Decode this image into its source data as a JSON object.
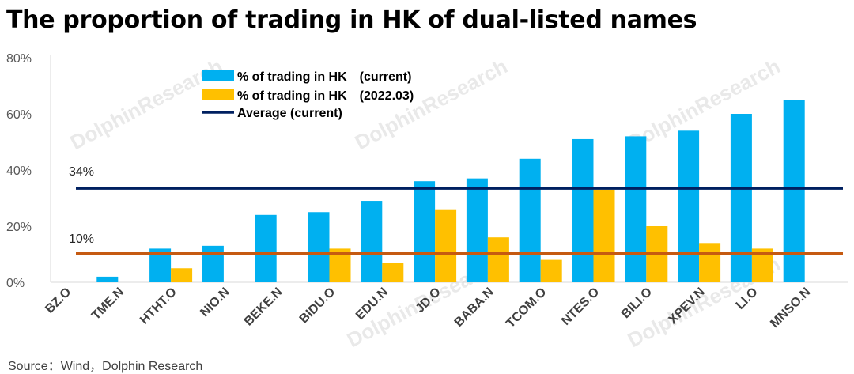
{
  "title": "The proportion of trading in HK of dual-listed names",
  "source": "Source：Wind，Dolphin Research",
  "watermark": "DolphinResearch",
  "colors": {
    "current": "#00B0F0",
    "past": "#FFC000",
    "average": "#002060",
    "line10": "#C55A11"
  },
  "chart_data": {
    "type": "bar",
    "categories": [
      "BZ.O",
      "TME.N",
      "HTHT.O",
      "NIO.N",
      "BEKE.N",
      "BIDU.O",
      "EDU.N",
      "JD.O",
      "BABA.N",
      "TCOM.O",
      "NTES.O",
      "BILI.O",
      "XPEV.N",
      "LI.O",
      "MNSO.N"
    ],
    "series": [
      {
        "name": "% of trading in HK　(current)",
        "values": [
          0,
          2,
          12,
          13,
          24,
          25,
          29,
          36,
          37,
          44,
          51,
          52,
          54,
          60,
          65
        ]
      },
      {
        "name": "% of trading in HK　(2022.03)",
        "values": [
          0,
          0,
          5,
          0,
          0,
          12,
          7,
          26,
          16,
          8,
          33,
          20,
          14,
          12,
          0
        ]
      }
    ],
    "lines": [
      {
        "name": "Average (current)",
        "value": 33.5,
        "label": "34%"
      },
      {
        "name": "",
        "value": 10.2,
        "label": "10%"
      }
    ],
    "yticks": [
      "0%",
      "20%",
      "40%",
      "60%",
      "80%"
    ],
    "ylim": [
      0,
      80
    ],
    "legend_position": "top-left"
  }
}
